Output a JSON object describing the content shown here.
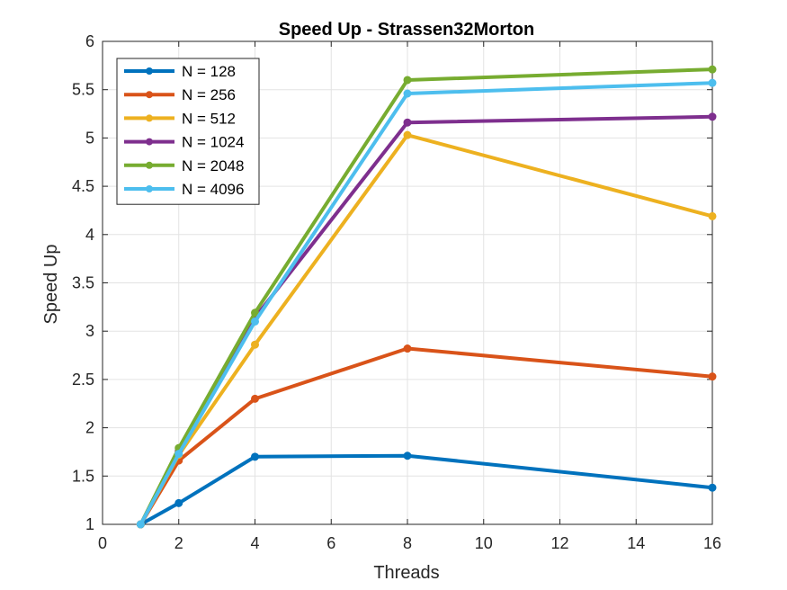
{
  "chart_data": {
    "type": "line",
    "title": "Speed Up - Strassen32Morton",
    "xlabel": "Threads",
    "ylabel": "Speed Up",
    "xlim": [
      0,
      16
    ],
    "ylim": [
      1,
      6
    ],
    "xticks": [
      0,
      2,
      4,
      6,
      8,
      10,
      12,
      14,
      16
    ],
    "yticks": [
      1,
      1.5,
      2,
      2.5,
      3,
      3.5,
      4,
      4.5,
      5,
      5.5,
      6
    ],
    "xtick_labels": [
      "0",
      "2",
      "4",
      "6",
      "8",
      "10",
      "12",
      "14",
      "16"
    ],
    "ytick_labels": [
      "1",
      "1.5",
      "2",
      "2.5",
      "3",
      "3.5",
      "4",
      "4.5",
      "5",
      "5.5",
      "6"
    ],
    "grid": true,
    "legend_position": "top-left",
    "x": [
      1,
      2,
      4,
      8,
      16
    ],
    "series": [
      {
        "name": "N = 128",
        "color": "#0072BD",
        "values": [
          1.0,
          1.22,
          1.7,
          1.71,
          1.38
        ]
      },
      {
        "name": "N = 256",
        "color": "#D95319",
        "values": [
          1.0,
          1.66,
          2.3,
          2.82,
          2.53
        ]
      },
      {
        "name": "N = 512",
        "color": "#EDB120",
        "values": [
          1.0,
          1.72,
          2.86,
          5.03,
          4.19
        ]
      },
      {
        "name": "N = 1024",
        "color": "#7E2F8E",
        "values": [
          1.0,
          1.76,
          3.14,
          5.16,
          5.22
        ]
      },
      {
        "name": "N = 2048",
        "color": "#77AC30",
        "values": [
          1.0,
          1.79,
          3.19,
          5.6,
          5.71
        ]
      },
      {
        "name": "N = 4096",
        "color": "#4DBEEE",
        "values": [
          1.0,
          1.73,
          3.1,
          5.46,
          5.57
        ]
      }
    ]
  }
}
